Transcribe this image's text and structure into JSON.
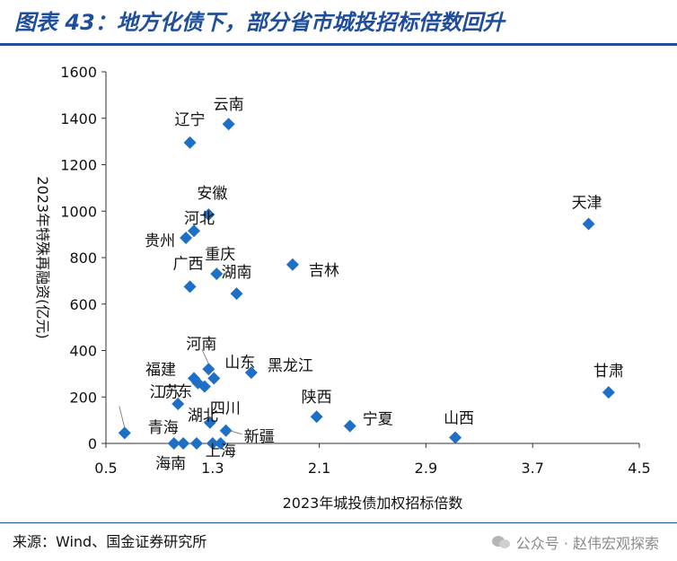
{
  "header": {
    "title": "图表 43：地方化债下，部分省市城投招标倍数回升"
  },
  "footer": {
    "source": "来源：Wind、国金证券研究所",
    "watermark": "公众号 · 赵伟宏观探索"
  },
  "chart_data": {
    "type": "scatter",
    "xlabel": "2023年城投债加权招标倍数",
    "ylabel": "2023年特殊再融资(亿元)",
    "xlim": [
      0.5,
      4.5
    ],
    "ylim": [
      0,
      1600
    ],
    "xticks": [
      0.5,
      1.3,
      2.1,
      2.9,
      3.7,
      4.5
    ],
    "yticks": [
      0,
      200,
      400,
      600,
      800,
      1000,
      1200,
      1400,
      1600
    ],
    "marker_color": "#1f6fc6",
    "points": [
      {
        "label": "云南",
        "x": 1.42,
        "y": 1375
      },
      {
        "label": "辽宁",
        "x": 1.13,
        "y": 1295
      },
      {
        "label": "安徽",
        "x": 1.27,
        "y": 985
      },
      {
        "label": "河北",
        "x": 1.16,
        "y": 915
      },
      {
        "label": "贵州",
        "x": 1.1,
        "y": 885
      },
      {
        "label": "天津",
        "x": 4.12,
        "y": 945
      },
      {
        "label": "吉林",
        "x": 1.9,
        "y": 770
      },
      {
        "label": "重庆",
        "x": 1.33,
        "y": 730
      },
      {
        "label": "广西",
        "x": 1.13,
        "y": 675
      },
      {
        "label": "湖南",
        "x": 1.48,
        "y": 645
      },
      {
        "label": "河南",
        "x": 1.27,
        "y": 320
      },
      {
        "label": "黑龙江",
        "x": 1.59,
        "y": 305
      },
      {
        "label": "福建",
        "x": 1.16,
        "y": 280
      },
      {
        "label": "山东",
        "x": 1.31,
        "y": 280
      },
      {
        "label": "甘肃",
        "x": 4.27,
        "y": 220
      },
      {
        "label": "江苏",
        "x": 1.19,
        "y": 260
      },
      {
        "label": "四川",
        "x": 1.24,
        "y": 245
      },
      {
        "label": "广东",
        "x": 1.04,
        "y": 170
      },
      {
        "label": "陕西",
        "x": 2.08,
        "y": 115
      },
      {
        "label": "湖北",
        "x": 1.28,
        "y": 90
      },
      {
        "label": "宁夏",
        "x": 2.33,
        "y": 75
      },
      {
        "label": "新疆",
        "x": 1.4,
        "y": 55
      },
      {
        "label": "山西",
        "x": 3.12,
        "y": 25
      },
      {
        "label": "",
        "x": 0.64,
        "y": 45
      },
      {
        "label": "青海",
        "x": 1.01,
        "y": 0
      },
      {
        "label": "海南",
        "x": 1.08,
        "y": 0
      },
      {
        "label": "",
        "x": 1.18,
        "y": 0
      },
      {
        "label": "上海",
        "x": 1.3,
        "y": 0
      },
      {
        "label": "",
        "x": 1.36,
        "y": 0
      }
    ]
  }
}
